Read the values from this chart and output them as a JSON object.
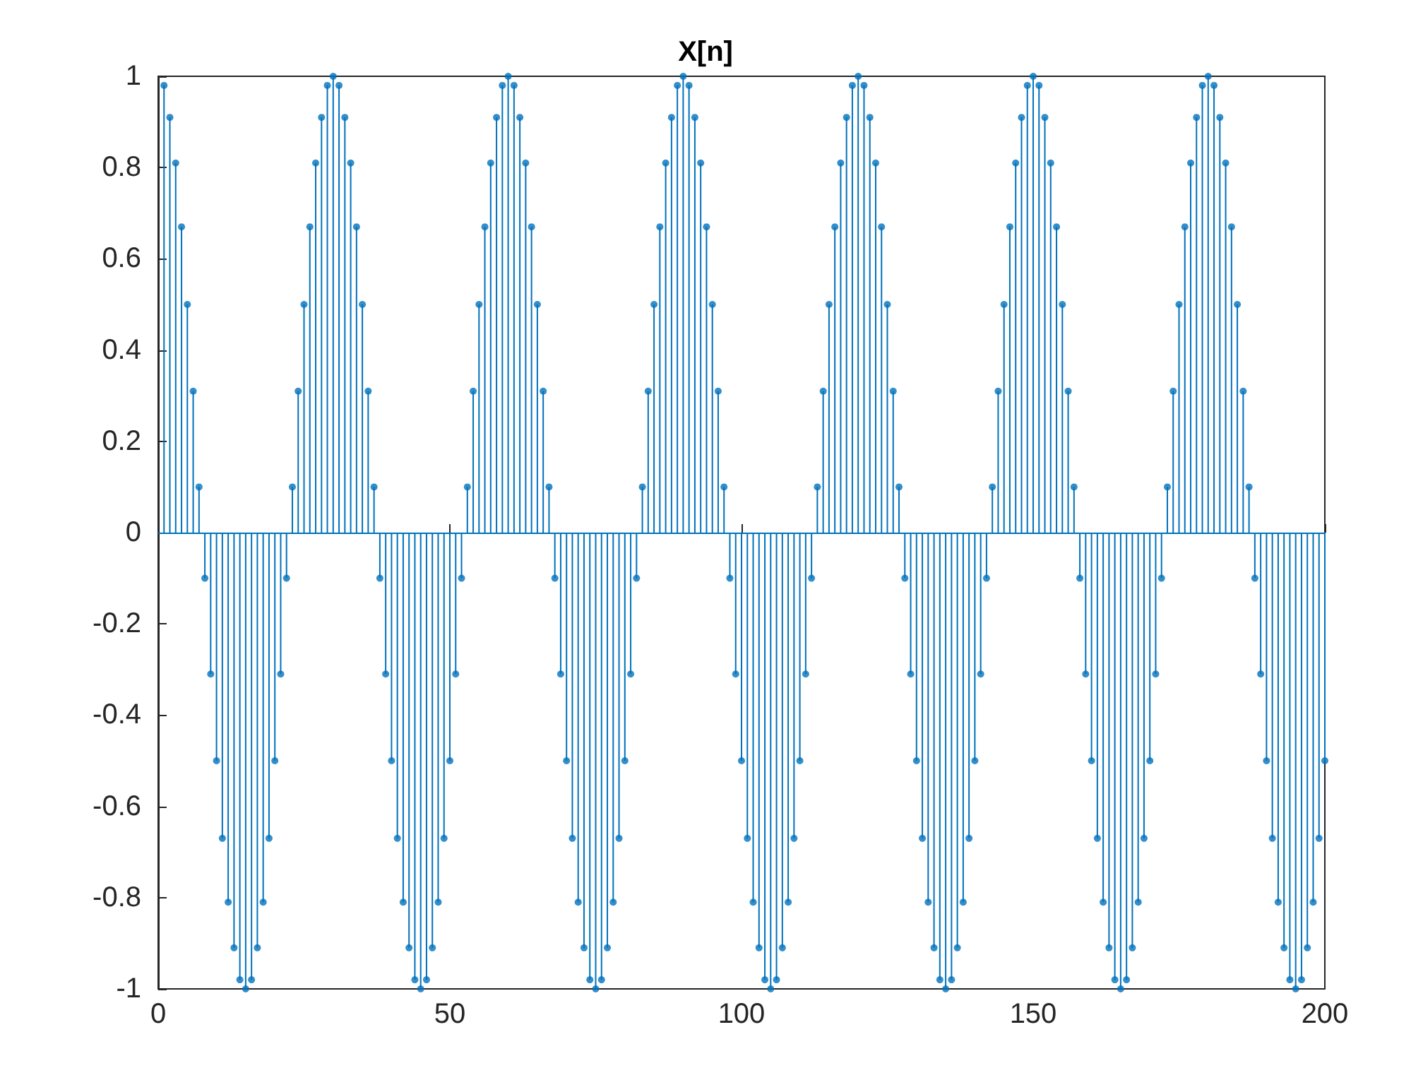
{
  "chart_data": {
    "type": "lollipop",
    "title": "X[n]",
    "color": "#0072bd",
    "marker": "circle",
    "grid": false,
    "ref_lines": [
      {
        "axis": "y",
        "value": 0,
        "color": "#0072bd"
      }
    ],
    "xlim": [
      0,
      200
    ],
    "xticks": [
      0,
      50,
      100,
      150,
      200
    ],
    "ylim": [
      -1,
      1
    ],
    "yticks": [
      -1,
      -0.8,
      -0.6,
      -0.4,
      -0.2,
      0,
      0.2,
      0.4,
      0.6,
      0.8,
      1
    ],
    "x": [
      1,
      2,
      3,
      4,
      5,
      6,
      7,
      8,
      9,
      10,
      11,
      12,
      13,
      14,
      15,
      16,
      17,
      18,
      19,
      20,
      21,
      22,
      23,
      24,
      25,
      26,
      27,
      28,
      29,
      30,
      31,
      32,
      33,
      34,
      35,
      36,
      37,
      38,
      39,
      40,
      41,
      42,
      43,
      44,
      45,
      46,
      47,
      48,
      49,
      50,
      51,
      52,
      53,
      54,
      55,
      56,
      57,
      58,
      59,
      60,
      61,
      62,
      63,
      64,
      65,
      66,
      67,
      68,
      69,
      70,
      71,
      72,
      73,
      74,
      75,
      76,
      77,
      78,
      79,
      80,
      81,
      82,
      83,
      84,
      85,
      86,
      87,
      88,
      89,
      90,
      91,
      92,
      93,
      94,
      95,
      96,
      97,
      98,
      99,
      100,
      101,
      102,
      103,
      104,
      105,
      106,
      107,
      108,
      109,
      110,
      111,
      112,
      113,
      114,
      115,
      116,
      117,
      118,
      119,
      120,
      121,
      122,
      123,
      124,
      125,
      126,
      127,
      128,
      129,
      130,
      131,
      132,
      133,
      134,
      135,
      136,
      137,
      138,
      139,
      140,
      141,
      142,
      143,
      144,
      145,
      146,
      147,
      148,
      149,
      150,
      151,
      152,
      153,
      154,
      155,
      156,
      157,
      158,
      159,
      160,
      161,
      162,
      163,
      164,
      165,
      166,
      167,
      168,
      169,
      170,
      171,
      172,
      173,
      174,
      175,
      176,
      177,
      178,
      179,
      180,
      181,
      182,
      183,
      184,
      185,
      186,
      187,
      188,
      189,
      190,
      191,
      192,
      193,
      194,
      195,
      196,
      197,
      198,
      199,
      200
    ],
    "values": [
      0.98,
      0.91,
      0.81,
      0.67,
      0.5,
      0.31,
      0.1,
      -0.1,
      -0.31,
      -0.5,
      -0.67,
      -0.81,
      -0.91,
      -0.98,
      -1,
      -0.98,
      -0.91,
      -0.81,
      -0.67,
      -0.5,
      -0.31,
      -0.1,
      0.1,
      0.31,
      0.5,
      0.67,
      0.81,
      0.91,
      0.98,
      1,
      0.98,
      0.91,
      0.81,
      0.67,
      0.5,
      0.31,
      0.1,
      -0.1,
      -0.31,
      -0.5,
      -0.67,
      -0.81,
      -0.91,
      -0.98,
      -1,
      -0.98,
      -0.91,
      -0.81,
      -0.67,
      -0.5,
      -0.31,
      -0.1,
      0.1,
      0.31,
      0.5,
      0.67,
      0.81,
      0.91,
      0.98,
      1,
      0.98,
      0.91,
      0.81,
      0.67,
      0.5,
      0.31,
      0.1,
      -0.1,
      -0.31,
      -0.5,
      -0.67,
      -0.81,
      -0.91,
      -0.98,
      -1,
      -0.98,
      -0.91,
      -0.81,
      -0.67,
      -0.5,
      -0.31,
      -0.1,
      0.1,
      0.31,
      0.5,
      0.67,
      0.81,
      0.91,
      0.98,
      1,
      0.98,
      0.91,
      0.81,
      0.67,
      0.5,
      0.31,
      0.1,
      -0.1,
      -0.31,
      -0.5,
      -0.67,
      -0.81,
      -0.91,
      -0.98,
      -1,
      -0.98,
      -0.91,
      -0.81,
      -0.67,
      -0.5,
      -0.31,
      -0.1,
      0.1,
      0.31,
      0.5,
      0.67,
      0.81,
      0.91,
      0.98,
      1,
      0.98,
      0.91,
      0.81,
      0.67,
      0.5,
      0.31,
      0.1,
      -0.1,
      -0.31,
      -0.5,
      -0.67,
      -0.81,
      -0.91,
      -0.98,
      -1,
      -0.98,
      -0.91,
      -0.81,
      -0.67,
      -0.5,
      -0.31,
      -0.1,
      0.1,
      0.31,
      0.5,
      0.67,
      0.81,
      0.91,
      0.98,
      1,
      0.98,
      0.91,
      0.81,
      0.67,
      0.5,
      0.31,
      0.1,
      -0.1,
      -0.31,
      -0.5,
      -0.67,
      -0.81,
      -0.91,
      -0.98,
      -1,
      -0.98,
      -0.91,
      -0.81,
      -0.67,
      -0.5,
      -0.31,
      -0.1,
      0.1,
      0.31,
      0.5,
      0.67,
      0.81,
      0.91,
      0.98,
      1,
      0.98,
      0.91,
      0.81,
      0.67,
      0.5,
      0.31,
      0.1,
      -0.1,
      -0.31,
      -0.5,
      -0.67,
      -0.81,
      -0.91,
      -0.98,
      -1,
      -0.98,
      -0.91,
      -0.81,
      -0.67,
      -0.5
    ]
  }
}
